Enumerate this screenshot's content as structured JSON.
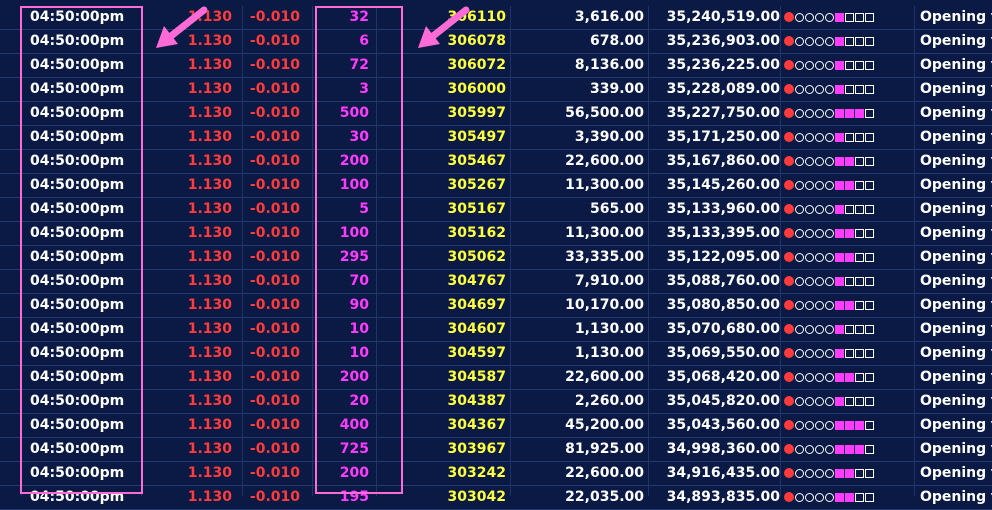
{
  "trades": [
    {
      "time": "04:50:00pm",
      "price": "1.130",
      "change": "-0.010",
      "volume": "32",
      "seq": "306110",
      "value": "3,616.00",
      "cumulative": "35,240,519.00",
      "type": "Opening t",
      "bar_level": 1
    },
    {
      "time": "04:50:00pm",
      "price": "1.130",
      "change": "-0.010",
      "volume": "6",
      "seq": "306078",
      "value": "678.00",
      "cumulative": "35,236,903.00",
      "type": "Opening t",
      "bar_level": 1
    },
    {
      "time": "04:50:00pm",
      "price": "1.130",
      "change": "-0.010",
      "volume": "72",
      "seq": "306072",
      "value": "8,136.00",
      "cumulative": "35,236,225.00",
      "type": "Opening t",
      "bar_level": 1
    },
    {
      "time": "04:50:00pm",
      "price": "1.130",
      "change": "-0.010",
      "volume": "3",
      "seq": "306000",
      "value": "339.00",
      "cumulative": "35,228,089.00",
      "type": "Opening t",
      "bar_level": 1
    },
    {
      "time": "04:50:00pm",
      "price": "1.130",
      "change": "-0.010",
      "volume": "500",
      "seq": "305997",
      "value": "56,500.00",
      "cumulative": "35,227,750.00",
      "type": "Opening t",
      "bar_level": 3
    },
    {
      "time": "04:50:00pm",
      "price": "1.130",
      "change": "-0.010",
      "volume": "30",
      "seq": "305497",
      "value": "3,390.00",
      "cumulative": "35,171,250.00",
      "type": "Opening t",
      "bar_level": 1
    },
    {
      "time": "04:50:00pm",
      "price": "1.130",
      "change": "-0.010",
      "volume": "200",
      "seq": "305467",
      "value": "22,600.00",
      "cumulative": "35,167,860.00",
      "type": "Opening t",
      "bar_level": 2
    },
    {
      "time": "04:50:00pm",
      "price": "1.130",
      "change": "-0.010",
      "volume": "100",
      "seq": "305267",
      "value": "11,300.00",
      "cumulative": "35,145,260.00",
      "type": "Opening t",
      "bar_level": 2
    },
    {
      "time": "04:50:00pm",
      "price": "1.130",
      "change": "-0.010",
      "volume": "5",
      "seq": "305167",
      "value": "565.00",
      "cumulative": "35,133,960.00",
      "type": "Opening t",
      "bar_level": 1
    },
    {
      "time": "04:50:00pm",
      "price": "1.130",
      "change": "-0.010",
      "volume": "100",
      "seq": "305162",
      "value": "11,300.00",
      "cumulative": "35,133,395.00",
      "type": "Opening t",
      "bar_level": 2
    },
    {
      "time": "04:50:00pm",
      "price": "1.130",
      "change": "-0.010",
      "volume": "295",
      "seq": "305062",
      "value": "33,335.00",
      "cumulative": "35,122,095.00",
      "type": "Opening t",
      "bar_level": 2
    },
    {
      "time": "04:50:00pm",
      "price": "1.130",
      "change": "-0.010",
      "volume": "70",
      "seq": "304767",
      "value": "7,910.00",
      "cumulative": "35,088,760.00",
      "type": "Opening t",
      "bar_level": 1
    },
    {
      "time": "04:50:00pm",
      "price": "1.130",
      "change": "-0.010",
      "volume": "90",
      "seq": "304697",
      "value": "10,170.00",
      "cumulative": "35,080,850.00",
      "type": "Opening t",
      "bar_level": 2
    },
    {
      "time": "04:50:00pm",
      "price": "1.130",
      "change": "-0.010",
      "volume": "10",
      "seq": "304607",
      "value": "1,130.00",
      "cumulative": "35,070,680.00",
      "type": "Opening t",
      "bar_level": 1
    },
    {
      "time": "04:50:00pm",
      "price": "1.130",
      "change": "-0.010",
      "volume": "10",
      "seq": "304597",
      "value": "1,130.00",
      "cumulative": "35,069,550.00",
      "type": "Opening t",
      "bar_level": 1
    },
    {
      "time": "04:50:00pm",
      "price": "1.130",
      "change": "-0.010",
      "volume": "200",
      "seq": "304587",
      "value": "22,600.00",
      "cumulative": "35,068,420.00",
      "type": "Opening t",
      "bar_level": 2
    },
    {
      "time": "04:50:00pm",
      "price": "1.130",
      "change": "-0.010",
      "volume": "20",
      "seq": "304387",
      "value": "2,260.00",
      "cumulative": "35,045,820.00",
      "type": "Opening t",
      "bar_level": 1
    },
    {
      "time": "04:50:00pm",
      "price": "1.130",
      "change": "-0.010",
      "volume": "400",
      "seq": "304367",
      "value": "45,200.00",
      "cumulative": "35,043,560.00",
      "type": "Opening t",
      "bar_level": 3
    },
    {
      "time": "04:50:00pm",
      "price": "1.130",
      "change": "-0.010",
      "volume": "725",
      "seq": "303967",
      "value": "81,925.00",
      "cumulative": "34,998,360.00",
      "type": "Opening t",
      "bar_level": 3
    },
    {
      "time": "04:50:00pm",
      "price": "1.130",
      "change": "-0.010",
      "volume": "200",
      "seq": "303242",
      "value": "22,600.00",
      "cumulative": "34,916,435.00",
      "type": "Opening t",
      "bar_level": 2
    },
    {
      "time": "04:50:00pm",
      "price": "1.130",
      "change": "-0.010",
      "volume": "195",
      "seq": "303042",
      "value": "22,035.00",
      "cumulative": "34,893,835.00",
      "type": "Opening t",
      "bar_level": 2
    }
  ],
  "indicator": {
    "dot_color": "#ff3b3b",
    "circle_count": 4,
    "square_count": 4,
    "on_color": "#ff3bff"
  },
  "colors": {
    "background": "#0a1a45",
    "time": "#ffffff",
    "price": "#ff3b3b",
    "volume": "#ff3bff",
    "seq": "#ffff3b",
    "highlight": "#ff6bd6"
  }
}
